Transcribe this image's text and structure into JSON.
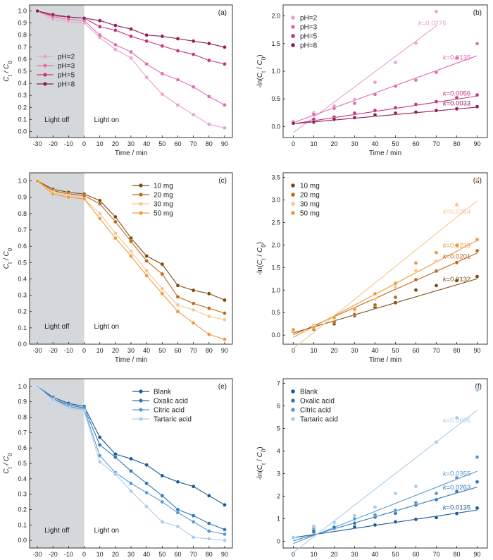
{
  "chart_data": [
    {
      "panel": "(a)",
      "type": "line",
      "xlabel": "Time / min",
      "ylabel_parts": [
        "C",
        "t",
        " / C",
        "0"
      ],
      "x": [
        -30,
        -20,
        -10,
        0,
        10,
        20,
        30,
        40,
        50,
        60,
        70,
        80,
        90
      ],
      "xticks": [
        -30,
        -20,
        -10,
        0,
        10,
        20,
        30,
        40,
        50,
        60,
        70,
        80,
        90
      ],
      "xlim": [
        -35,
        95
      ],
      "ylim": [
        -0.05,
        1.05
      ],
      "yticks": [
        0.0,
        0.1,
        0.2,
        0.3,
        0.4,
        0.5,
        0.6,
        0.7,
        0.8,
        0.9,
        1.0
      ],
      "ytick_decimals": 1,
      "dark_region": {
        "from": -35,
        "to": 0,
        "label_off": "Light off",
        "label_on": "Light on"
      },
      "legend_pos": "left",
      "series": [
        {
          "name": "pH=2",
          "color": "#eaa1cf",
          "values": [
            1.0,
            0.93,
            0.91,
            0.9,
            0.78,
            0.68,
            0.61,
            0.45,
            0.31,
            0.22,
            0.14,
            0.06,
            0.03
          ]
        },
        {
          "name": "pH=3",
          "color": "#df6fb1",
          "values": [
            1.0,
            0.95,
            0.93,
            0.92,
            0.8,
            0.72,
            0.66,
            0.56,
            0.48,
            0.43,
            0.37,
            0.29,
            0.22
          ]
        },
        {
          "name": "pH=5",
          "color": "#c5357f",
          "values": [
            1.0,
            0.96,
            0.95,
            0.94,
            0.87,
            0.84,
            0.79,
            0.75,
            0.71,
            0.67,
            0.64,
            0.59,
            0.56
          ]
        },
        {
          "name": "pH=8",
          "color": "#8f1f52",
          "values": [
            1.0,
            0.97,
            0.95,
            0.94,
            0.92,
            0.88,
            0.85,
            0.8,
            0.79,
            0.77,
            0.75,
            0.73,
            0.7
          ]
        }
      ]
    },
    {
      "panel": "(b)",
      "type": "scatter",
      "xlabel": "Time / min",
      "ylabel_parts": [
        "-ln(",
        "C",
        "t",
        " / ",
        "C",
        "0",
        ")"
      ],
      "x": [
        0,
        10,
        20,
        30,
        40,
        50,
        60,
        70,
        80,
        90
      ],
      "xticks": [
        0,
        10,
        20,
        30,
        40,
        50,
        60,
        70,
        80,
        90
      ],
      "xlim": [
        -5,
        95
      ],
      "ylim": [
        -0.2,
        2.2
      ],
      "yticks": [
        0.0,
        0.5,
        1.0,
        1.5,
        2.0
      ],
      "ytick_decimals": 1,
      "legend_pos": "top-left",
      "series": [
        {
          "name": "pH=2",
          "color": "#eaa1cf",
          "k": "k=0.0276",
          "values": [
            0.09,
            0.25,
            0.37,
            0.49,
            0.8,
            1.16,
            1.51,
            2.08,
            null,
            null
          ],
          "fit": [
            -0.11,
            1.82
          ],
          "fit_x": [
            0,
            70
          ]
        },
        {
          "name": "pH=3",
          "color": "#df6fb1",
          "k": "k=0.0135",
          "values": [
            0.08,
            0.22,
            0.33,
            0.42,
            0.58,
            0.73,
            0.84,
            0.98,
            1.24,
            1.5
          ],
          "fit": [
            0.07,
            1.28
          ],
          "fit_x": [
            0,
            90
          ]
        },
        {
          "name": "pH=5",
          "color": "#c5357f",
          "k": "k=0.0056",
          "values": [
            0.06,
            0.13,
            0.17,
            0.24,
            0.29,
            0.34,
            0.4,
            0.45,
            0.52,
            0.57
          ],
          "fit": [
            0.05,
            0.55
          ],
          "fit_x": [
            0,
            90
          ]
        },
        {
          "name": "pH=8",
          "color": "#8f1f52",
          "k": "k=0.0033",
          "values": [
            0.06,
            0.08,
            0.13,
            0.16,
            0.21,
            0.24,
            0.26,
            0.29,
            0.32,
            0.36
          ],
          "fit": [
            0.05,
            0.35
          ],
          "fit_x": [
            0,
            90
          ]
        }
      ]
    },
    {
      "panel": "(c)",
      "type": "line",
      "xlabel": "Time / min",
      "ylabel_parts": [
        "C",
        "t",
        " / C",
        "0"
      ],
      "x": [
        -30,
        -20,
        -10,
        0,
        10,
        20,
        30,
        40,
        50,
        60,
        70,
        80,
        90
      ],
      "xticks": [
        -30,
        -20,
        -10,
        0,
        10,
        20,
        30,
        40,
        50,
        60,
        70,
        80,
        90
      ],
      "xlim": [
        -35,
        95
      ],
      "ylim": [
        0,
        1.05
      ],
      "yticks": [
        0.0,
        0.1,
        0.2,
        0.3,
        0.4,
        0.5,
        0.6,
        0.7,
        0.8,
        0.9,
        1.0
      ],
      "ytick_decimals": 1,
      "dark_region": {
        "from": -35,
        "to": 0,
        "label_off": "Light off",
        "label_on": "Light on"
      },
      "legend_pos": "right",
      "series": [
        {
          "name": "10 mg",
          "color": "#7f4a12",
          "values": [
            1.0,
            0.95,
            0.93,
            0.92,
            0.88,
            0.78,
            0.65,
            0.54,
            0.49,
            0.36,
            0.33,
            0.31,
            0.27
          ]
        },
        {
          "name": "20 mg",
          "color": "#c06819",
          "values": [
            1.0,
            0.94,
            0.92,
            0.91,
            0.86,
            0.75,
            0.63,
            0.51,
            0.43,
            0.29,
            0.25,
            0.22,
            0.19
          ]
        },
        {
          "name": "30 mg",
          "color": "#f6c88e",
          "values": [
            1.0,
            0.93,
            0.91,
            0.89,
            0.8,
            0.68,
            0.57,
            0.45,
            0.34,
            0.24,
            0.21,
            0.17,
            0.15
          ]
        },
        {
          "name": "50 mg",
          "color": "#f09a3e",
          "values": [
            1.0,
            0.92,
            0.9,
            0.89,
            0.77,
            0.65,
            0.54,
            0.42,
            0.31,
            0.2,
            0.13,
            0.06,
            0.03
          ]
        }
      ]
    },
    {
      "panel": "(d)",
      "type": "scatter",
      "xlabel": "Time / min",
      "ylabel_parts": [
        "-ln(",
        "C",
        "t",
        " / ",
        "C",
        "0",
        ")"
      ],
      "x": [
        0,
        10,
        20,
        30,
        40,
        50,
        60,
        70,
        80,
        90
      ],
      "xticks": [
        0,
        10,
        20,
        30,
        40,
        50,
        60,
        70,
        80,
        90
      ],
      "xlim": [
        -5,
        95
      ],
      "ylim": [
        -0.2,
        3.6
      ],
      "yticks": [
        0.0,
        0.5,
        1.0,
        1.5,
        2.0,
        2.5,
        3.0,
        3.5
      ],
      "ytick_decimals": 1,
      "legend_pos": "top-left",
      "series": [
        {
          "name": "10 mg",
          "color": "#7f4a12",
          "k": "k=0.0132",
          "values": [
            0.08,
            0.13,
            0.25,
            0.43,
            0.62,
            0.72,
            1.0,
            1.1,
            1.21,
            1.3
          ],
          "fit": [
            0.05,
            1.25
          ],
          "fit_x": [
            0,
            90
          ]
        },
        {
          "name": "20 mg",
          "color": "#c06819",
          "k": "k=0.0201",
          "values": [
            0.09,
            0.15,
            0.29,
            0.46,
            0.67,
            0.84,
            1.23,
            1.42,
            1.61,
            1.87
          ],
          "fit": [
            0.01,
            1.82
          ],
          "fit_x": [
            0,
            90
          ]
        },
        {
          "name": "30 mg",
          "color": "#f6c88e",
          "k": "k=0.0364",
          "values": [
            0.11,
            0.22,
            0.38,
            0.56,
            0.8,
            1.07,
            1.43,
            1.64,
            2.89,
            3.45
          ],
          "fit": [
            -0.3,
            2.98
          ],
          "fit_x": [
            0,
            90
          ]
        },
        {
          "name": "50 mg",
          "color": "#f09a3e",
          "k": "k=0.0239",
          "values": [
            0.12,
            0.17,
            0.39,
            0.58,
            0.92,
            1.15,
            1.6,
            1.83,
            1.99,
            2.12
          ],
          "fit": [
            -0.05,
            2.1
          ],
          "fit_x": [
            0,
            90
          ]
        }
      ]
    },
    {
      "panel": "(e)",
      "type": "line",
      "xlabel": "Time / min",
      "ylabel_parts": [
        "C",
        "t",
        " / C",
        "0"
      ],
      "x": [
        -30,
        -20,
        -10,
        0,
        10,
        20,
        30,
        40,
        50,
        60,
        70,
        80,
        90
      ],
      "xticks": [
        -30,
        -20,
        -10,
        0,
        10,
        20,
        30,
        40,
        50,
        60,
        70,
        80,
        90
      ],
      "xlim": [
        -35,
        95
      ],
      "ylim": [
        -0.05,
        1.05
      ],
      "yticks": [
        0.0,
        0.1,
        0.2,
        0.3,
        0.4,
        0.5,
        0.6,
        0.7,
        0.8,
        0.9,
        1.0
      ],
      "ytick_decimals": 1,
      "dark_region": {
        "from": -35,
        "to": 0,
        "label_off": "Light off",
        "label_on": "Light on"
      },
      "legend_pos": "right",
      "series": [
        {
          "name": "Blank",
          "color": "#1a5a94",
          "values": [
            1.0,
            0.93,
            0.89,
            0.87,
            0.67,
            0.56,
            0.53,
            0.49,
            0.42,
            0.38,
            0.35,
            0.29,
            0.23
          ]
        },
        {
          "name": "Oxalic acid",
          "color": "#2f78b6",
          "values": [
            1.0,
            0.92,
            0.88,
            0.86,
            0.62,
            0.54,
            0.45,
            0.37,
            0.29,
            0.2,
            0.16,
            0.11,
            0.07
          ]
        },
        {
          "name": "Citric acid",
          "color": "#5a9ad0",
          "values": [
            1.0,
            0.92,
            0.87,
            0.85,
            0.55,
            0.44,
            0.37,
            0.31,
            0.25,
            0.18,
            0.12,
            0.06,
            0.04
          ]
        },
        {
          "name": "Tartaric acid",
          "color": "#a9cdee",
          "values": [
            1.0,
            0.91,
            0.86,
            0.84,
            0.51,
            0.43,
            0.32,
            0.22,
            0.12,
            0.09,
            0.02,
            0.01,
            0.0
          ]
        }
      ]
    },
    {
      "panel": "(f)",
      "type": "scatter",
      "xlabel": "Time / min",
      "ylabel_parts": [
        "-ln(",
        "C",
        "t",
        " / ",
        "C",
        "0",
        ")"
      ],
      "x": [
        0,
        10,
        20,
        30,
        40,
        50,
        60,
        70,
        80,
        90
      ],
      "xticks": [
        0,
        10,
        20,
        30,
        40,
        50,
        60,
        70,
        80,
        90
      ],
      "xlim": [
        -5,
        95
      ],
      "ylim": [
        -0.3,
        7.2
      ],
      "yticks": [
        0,
        1,
        2,
        3,
        4,
        5,
        6,
        7
      ],
      "ytick_decimals": 0,
      "legend_pos": "top-left",
      "series": [
        {
          "name": "Blank",
          "color": "#1a5a94",
          "k": "k=0.0135",
          "values": [
            0.14,
            0.41,
            0.58,
            0.63,
            0.72,
            0.86,
            0.97,
            1.05,
            1.23,
            1.47
          ],
          "fit": [
            0.16,
            1.38
          ],
          "fit_x": [
            0,
            90
          ]
        },
        {
          "name": "Oxalic acid",
          "color": "#2f78b6",
          "k": "k=0.0263",
          "values": [
            0.15,
            0.48,
            0.62,
            0.8,
            1.07,
            1.24,
            1.61,
            1.84,
            2.2,
            2.63
          ],
          "fit": [
            0.02,
            2.4
          ],
          "fit_x": [
            0,
            90
          ]
        },
        {
          "name": "Citric acid",
          "color": "#5a9ad0",
          "k": "k=0.0355",
          "values": [
            0.16,
            0.6,
            0.82,
            0.99,
            1.17,
            1.37,
            1.71,
            2.12,
            2.81,
            3.73
          ],
          "fit": [
            -0.1,
            3.1
          ],
          "fit_x": [
            0,
            90
          ]
        },
        {
          "name": "Tartaric acid",
          "color": "#a9cdee",
          "k": "k=0.0696",
          "values": [
            0.17,
            0.67,
            0.84,
            1.14,
            1.51,
            2.12,
            2.43,
            4.39,
            5.47,
            6.7
          ],
          "fit": [
            -0.5,
            5.8
          ],
          "fit_x": [
            0,
            90
          ]
        }
      ]
    }
  ]
}
